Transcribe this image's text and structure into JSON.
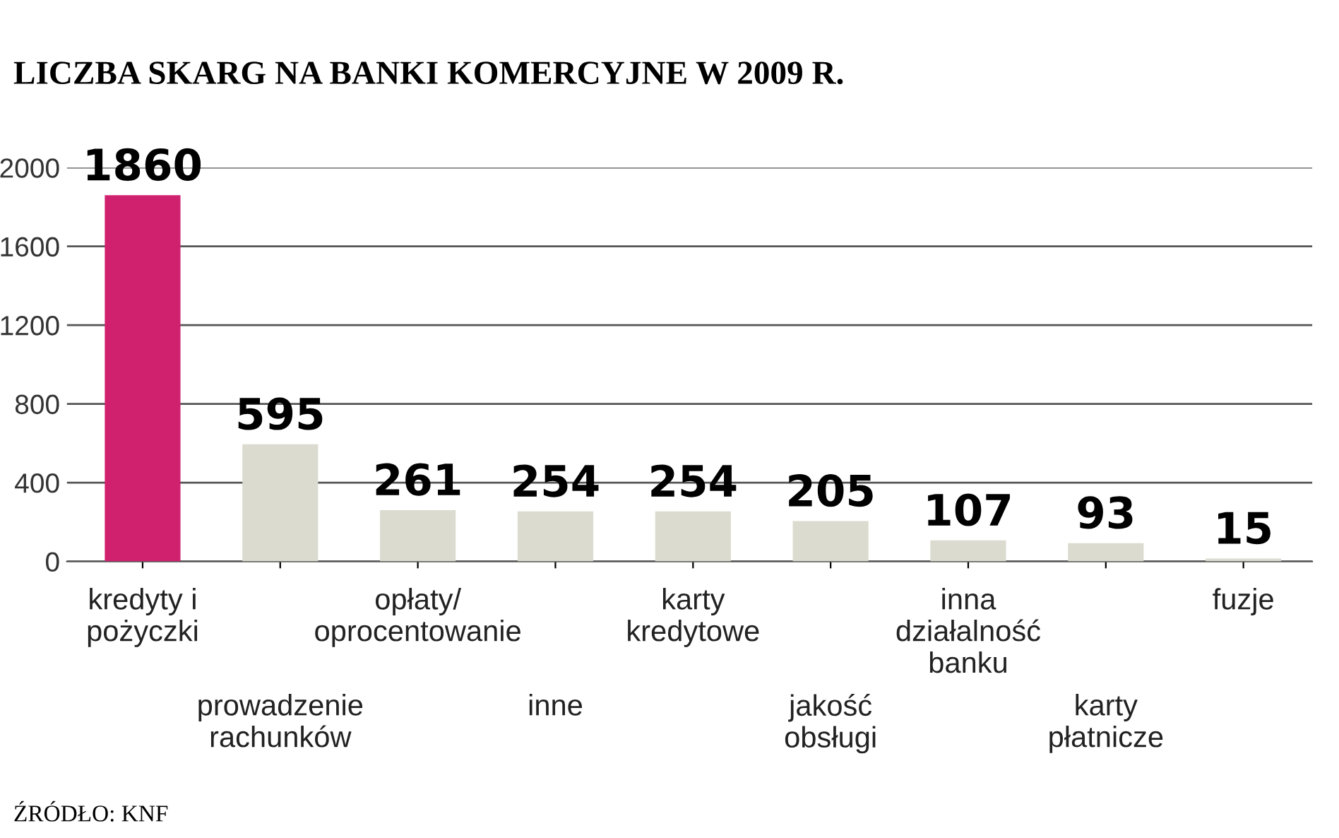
{
  "chart_data": {
    "type": "bar",
    "title": "LICZBA SKARG NA BANKI KOMERCYJNE W 2009 R.",
    "categories": [
      "kredyty i\npożyczki",
      "prowadzenie\nrachunków",
      "opłaty/\noprocentowanie",
      "inne",
      "karty\nkredytowe",
      "jakość\nobsługi",
      "inna\ndziałalność\nbanku",
      "karty\npłatnicze",
      "fuzje"
    ],
    "values": [
      1860,
      595,
      261,
      254,
      254,
      205,
      107,
      93,
      15
    ],
    "colors": [
      "#d0216f",
      "#dbdbcf",
      "#dbdbcf",
      "#dbdbcf",
      "#dbdbcf",
      "#dbdbcf",
      "#dbdbcf",
      "#dbdbcf",
      "#dbdbcf"
    ],
    "ylim": [
      0,
      2000
    ],
    "yticks": [
      0,
      400,
      800,
      1200,
      1600,
      2000
    ],
    "grid": "y",
    "data_labels": true,
    "annotations": [
      "ŹRÓDŁO: KNF"
    ]
  }
}
